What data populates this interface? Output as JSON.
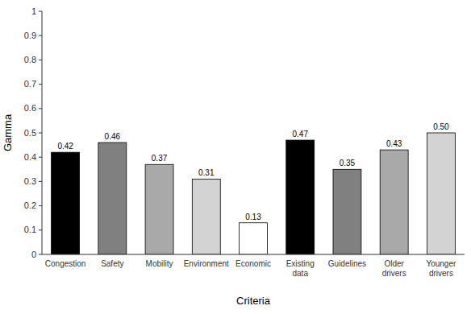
{
  "chart_data": {
    "type": "bar",
    "categories": [
      "Congestion",
      "Safety",
      "Mobility",
      "Environment",
      "Economic",
      "Existing\ndata",
      "Guidelines",
      "Older\ndrivers",
      "Younger\ndrivers"
    ],
    "values": [
      0.42,
      0.46,
      0.37,
      0.31,
      0.13,
      0.47,
      0.35,
      0.43,
      0.5
    ],
    "value_labels": [
      "0.42",
      "0.46",
      "0.37",
      "0.31",
      "0.13",
      "0.47",
      "0.35",
      "0.43",
      "0.50"
    ],
    "colors": [
      "#000000",
      "#808080",
      "#a9a9a9",
      "#d3d3d3",
      "#ffffff",
      "#000000",
      "#808080",
      "#a9a9a9",
      "#d3d3d3"
    ],
    "xlabel": "Criteria",
    "ylabel": "Gamma",
    "ylim": [
      0,
      1
    ],
    "yticks": [
      0,
      0.1,
      0.2,
      0.3,
      0.4,
      0.5,
      0.6,
      0.7,
      0.8,
      0.9,
      1
    ],
    "data_labels": true,
    "grid": false
  }
}
